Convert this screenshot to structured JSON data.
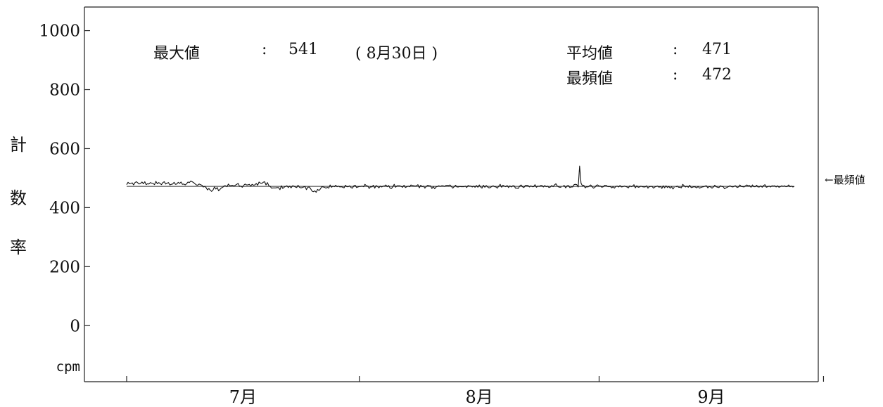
{
  "chart_data": {
    "type": "line",
    "ylabel": [
      "計",
      "数",
      "率"
    ],
    "yunit": "cpm",
    "yticks": [
      0,
      200,
      400,
      600,
      800,
      1000
    ],
    "ylim": [
      -190,
      1080
    ],
    "x_month_labels": [
      "7月",
      "8月",
      "9月"
    ],
    "mode_marker_label": "←最頻値",
    "stats": {
      "max_label": "最大値",
      "max_sep": ":",
      "max_value": "541",
      "max_date": "( 8月30日 )",
      "mean_label": "平均値",
      "mean_sep": ":",
      "mean_value": "471",
      "mode_label": "最頻値",
      "mode_sep": ":",
      "mode_value": "472"
    },
    "series": [
      {
        "values": [
          478,
          486,
          481,
          482,
          484,
          477,
          485,
          488,
          484,
          480,
          482,
          487,
          481,
          488,
          478,
          481,
          480,
          485,
          483,
          482,
          478,
          489,
          481,
          485,
          482,
          478,
          485,
          488,
          480,
          483,
          485,
          477,
          479,
          480,
          486,
          479,
          480,
          486,
          482,
          487,
          479,
          480,
          477,
          481,
          487,
          485,
          490,
          488,
          485,
          481,
          477,
          476,
          480,
          478,
          476,
          470,
          472,
          468,
          460,
          465,
          459,
          455,
          460,
          470,
          463,
          468,
          457,
          462,
          467,
          469,
          474,
          474,
          471,
          480,
          474,
          475,
          476,
          473,
          476,
          479,
          482,
          472,
          473,
          469,
          476,
          480,
          477,
          477,
          479,
          473,
          479,
          476,
          477,
          482,
          476,
          487,
          483,
          482,
          486,
          488,
          477,
          485,
          474,
          472,
          466,
          467,
          467,
          467,
          468,
          468,
          461,
          474,
          465,
          469,
          472,
          474,
          468,
          473,
          467,
          474,
          473,
          470,
          468,
          476,
          469,
          467,
          468,
          470,
          472,
          461,
          469,
          470,
          464,
          456,
          454,
          457,
          452,
          462,
          458,
          463,
          471,
          470,
          469,
          466,
          469,
          466,
          477,
          469,
          473,
          471,
          476,
          471,
          473,
          470,
          471,
          469,
          467,
          476,
          471,
          471,
          474,
          468,
          466,
          474,
          476,
          468,
          470,
          472,
          472,
          473,
          471,
          479,
          474,
          473,
          465,
          471,
          470,
          476,
          466,
          475,
          472,
          467,
          473,
          470,
          473,
          473,
          477,
          471,
          475,
          466,
          465,
          471,
          479,
          469,
          474,
          474,
          474,
          472,
          469,
          476,
          468,
          471,
          473,
          471,
          477,
          475,
          474,
          473,
          474,
          478,
          467,
          476,
          471,
          473,
          466,
          472,
          476,
          474,
          474,
          465,
          471,
          464,
          470,
          472,
          474,
          472,
          474,
          474,
          472,
          475,
          476,
          475,
          477,
          472,
          466,
          471,
          476,
          470,
          470,
          472,
          471,
          471,
          471,
          473,
          468,
          475,
          473,
          473,
          470,
          473,
          469,
          475,
          469,
          477,
          470,
          466,
          476,
          469,
          475,
          470,
          467,
          468,
          472,
          474,
          471,
          470,
          466,
          473,
          479,
          469,
          476,
          473,
          471,
          475,
          468,
          474,
          470,
          474,
          474,
          466,
          466,
          465,
          473,
          477,
          471,
          468,
          475,
          476,
          475,
          470,
          474,
          471,
          471,
          478,
          469,
          473,
          472,
          475,
          475,
          470,
          475,
          471,
          473,
          468,
          470,
          475,
          471,
          477,
          481,
          473,
          470,
          469,
          470,
          473,
          475,
          467,
          474,
          475,
          468,
          470,
          470,
          478,
          479,
          478,
          470,
          541,
          483,
          474,
          476,
          467,
          471,
          470,
          474,
          477,
          471,
          466,
          469,
          476,
          477,
          473,
          473,
          469,
          471,
          476,
          476,
          472,
          471,
          472,
          467,
          471,
          466,
          472,
          473,
          470,
          475,
          470,
          471,
          473,
          472,
          470,
          467,
          474,
          471,
          473,
          478,
          467,
          474,
          469,
          470,
          473,
          471,
          470,
          470,
          474,
          466,
          471,
          472,
          472,
          466,
          470,
          472,
          473,
          469,
          472,
          465,
          474,
          467,
          474,
          468,
          472,
          466,
          471,
          463,
          470,
          470,
          473,
          469,
          469,
          467,
          479,
          474,
          470,
          473,
          469,
          476,
          468,
          469,
          471,
          470,
          467,
          472,
          466,
          468,
          470,
          471,
          473,
          474,
          467,
          472,
          470,
          466,
          470,
          476,
          471,
          469,
          468,
          474,
          472,
          471,
          464,
          467,
          469,
          472,
          474,
          471,
          470,
          473,
          474,
          468,
          470,
          477,
          472,
          471,
          470,
          474,
          477,
          474,
          475,
          469,
          477,
          471,
          471,
          476,
          470,
          470,
          474,
          469,
          475,
          478,
          469,
          471,
          473,
          470,
          474,
          473,
          474,
          470,
          474,
          469,
          471,
          474,
          472,
          474,
          471,
          472,
          477,
          471,
          473,
          470,
          472
        ]
      }
    ],
    "gaps": [
      {
        "from_index": 312,
        "to_index": 313
      },
      {
        "from_index": 393,
        "to_index": 394
      }
    ],
    "xaxis": {
      "data_start": 0,
      "data_end": 471,
      "tick_positions": [
        0,
        167,
        339,
        500
      ]
    }
  }
}
